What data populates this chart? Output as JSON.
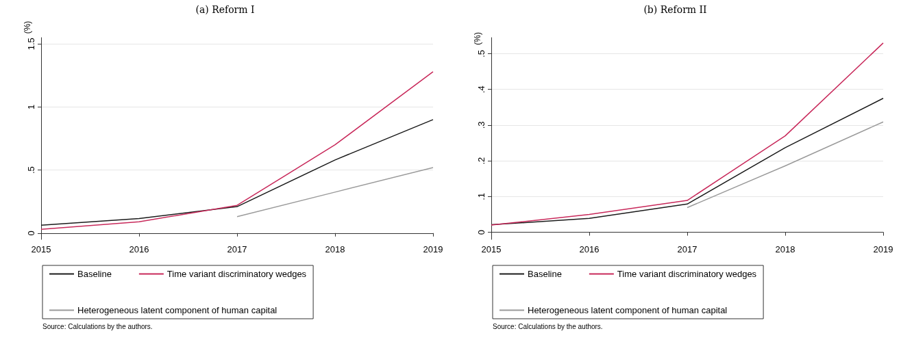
{
  "chart_data": [
    {
      "type": "line",
      "title": "(a) Reform I",
      "ylabel": "(%)",
      "categories": [
        "2015",
        "2016",
        "2017",
        "2018",
        "2019"
      ],
      "series": [
        {
          "name": "Baseline",
          "color": "#1a1a1a",
          "values": [
            0.063,
            0.115,
            0.21,
            0.58,
            0.9
          ]
        },
        {
          "name": "Time variant discriminatory wedges",
          "color": "#c8285a",
          "values": [
            0.03,
            0.09,
            0.22,
            0.7,
            1.28
          ]
        },
        {
          "name": "Heterogeneous latent component of human capital",
          "color": "#9a9a9a",
          "values": [
            null,
            null,
            0.13,
            0.325,
            0.52
          ]
        }
      ],
      "ylim": [
        -0.05,
        1.55
      ],
      "yticks": [
        {
          "value": 0,
          "label": "0"
        },
        {
          "value": 0.5,
          "label": ".5"
        },
        {
          "value": 1,
          "label": "1"
        },
        {
          "value": 1.5,
          "label": "1.5"
        }
      ],
      "grid": "y",
      "legend": "bottom",
      "marker": "none",
      "line_style": "solid",
      "annotations": [
        "Source: Calculations by the authors."
      ]
    },
    {
      "type": "line",
      "title": "(b) Reform II",
      "ylabel": "(%)",
      "categories": [
        "2015",
        "2016",
        "2017",
        "2018",
        "2019"
      ],
      "series": [
        {
          "name": "Baseline",
          "color": "#1a1a1a",
          "values": [
            0.021,
            0.039,
            0.079,
            0.237,
            0.375
          ]
        },
        {
          "name": "Time variant discriminatory wedges",
          "color": "#c8285a",
          "values": [
            0.02,
            0.05,
            0.089,
            0.27,
            0.53
          ]
        },
        {
          "name": "Heterogeneous latent component of human capital",
          "color": "#9a9a9a",
          "values": [
            null,
            null,
            0.069,
            0.186,
            0.309
          ]
        }
      ],
      "ylim": [
        -0.02,
        0.545
      ],
      "yticks": [
        {
          "value": 0,
          "label": "0"
        },
        {
          "value": 0.1,
          "label": ".1"
        },
        {
          "value": 0.2,
          "label": ".2"
        },
        {
          "value": 0.3,
          "label": ".3"
        },
        {
          "value": 0.4,
          "label": ".4"
        },
        {
          "value": 0.5,
          "label": ".5"
        }
      ],
      "grid": "y",
      "legend": "bottom",
      "marker": "none",
      "line_style": "solid",
      "annotations": [
        "Source: Calculations by the authors."
      ]
    }
  ]
}
